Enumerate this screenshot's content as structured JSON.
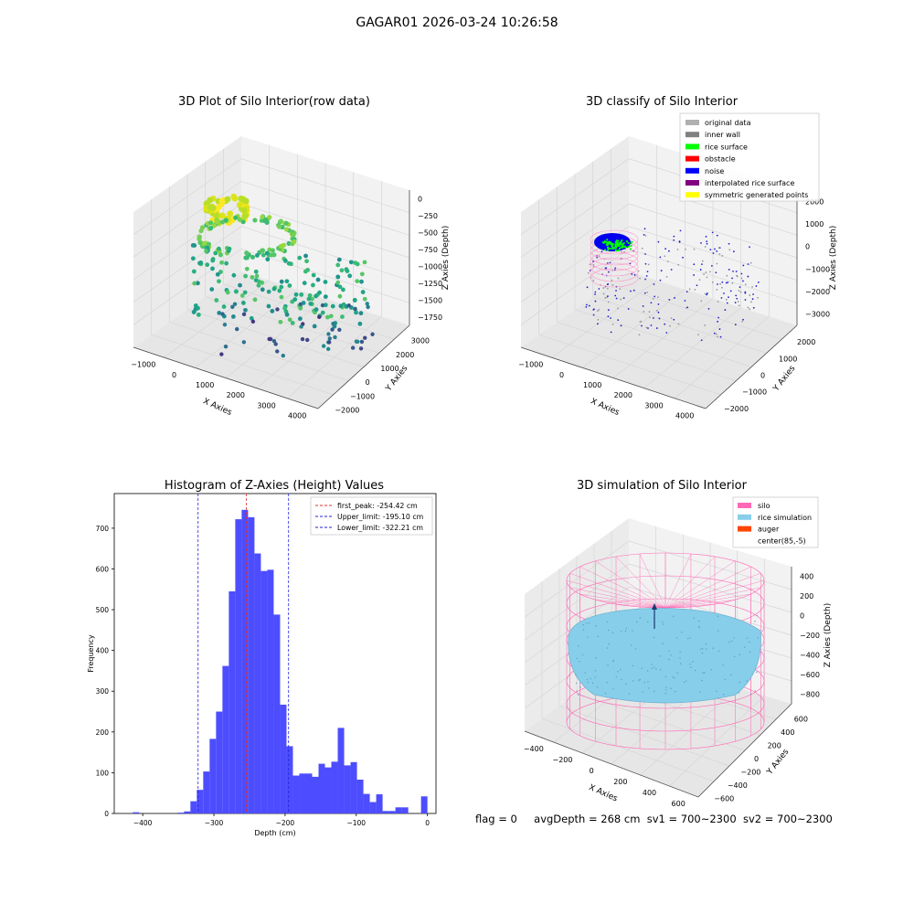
{
  "figure": {
    "title": "GAGAR01 2026-03-24 10:26:58",
    "status_line": {
      "flag": "flag = 0",
      "avg_depth": "avgDepth = 268 cm",
      "sv1": "sv1 = 700~2300",
      "sv2": "sv2 = 700~2300"
    }
  },
  "colors": {
    "histogram_bar": "#4d4dff",
    "first_peak_line": "#e03030",
    "limit_lines": "#2020e0",
    "pane": "#f2f2f2",
    "grid": "#d6d6d6",
    "silo_wire": "#ff69b4",
    "rice_surface": "#87ceeb"
  },
  "chart_data": [
    {
      "type": "scatter",
      "subtype": "3d",
      "title": "3D Plot of Silo Interior(row data)",
      "xlabel": "X Axies",
      "ylabel": "Y Axies",
      "zlabel": "Z Axies (Depth)",
      "xticks": [
        "−1000",
        "0",
        "1000",
        "2000",
        "3000",
        "4000"
      ],
      "yticks": [
        "−2000",
        "−1000",
        "0",
        "1000",
        "2000",
        "3000"
      ],
      "zticks": [
        "0",
        "−250",
        "−500",
        "−750",
        "−1000",
        "−1250",
        "−1500",
        "−1750"
      ],
      "colormap": "viridis (by depth)"
    },
    {
      "type": "scatter",
      "subtype": "3d",
      "title": "3D classify of Silo Interior",
      "xlabel": "X Axies",
      "ylabel": "Y Axies",
      "zlabel": "Z Axies (Depth)",
      "xticks": [
        "−1000",
        "0",
        "1000",
        "2000",
        "3000",
        "4000"
      ],
      "yticks": [
        "−2000",
        "−1000",
        "0",
        "1000",
        "2000"
      ],
      "zticks": [
        "2000",
        "1000",
        "0",
        "−1000",
        "−2000",
        "−3000"
      ],
      "legend_position": "top-right",
      "legend": [
        {
          "label": "original data",
          "color": "#b0b0b0"
        },
        {
          "label": "inner wall",
          "color": "#808080"
        },
        {
          "label": "rice surface",
          "color": "#00ff00"
        },
        {
          "label": "obstacle",
          "color": "#ff0000"
        },
        {
          "label": "noise",
          "color": "#0000ff"
        },
        {
          "label": "interpolated rice surface",
          "color": "#800080"
        },
        {
          "label": "symmetric generated points",
          "color": "#ffff00"
        }
      ]
    },
    {
      "type": "bar",
      "subtype": "histogram",
      "title": "Histogram of Z-Axies (Height) Values",
      "xlabel": "Depth (cm)",
      "ylabel": "Frequency",
      "xlim": [
        -440,
        12
      ],
      "ylim": [
        0,
        785
      ],
      "xticks": [
        {
          "value": -400,
          "label": "−400"
        },
        {
          "value": -300,
          "label": "−300"
        },
        {
          "value": -200,
          "label": "−200"
        },
        {
          "value": -100,
          "label": "−100"
        },
        {
          "value": 0,
          "label": "0"
        }
      ],
      "yticks": [
        {
          "value": 0,
          "label": "0"
        },
        {
          "value": 100,
          "label": "100"
        },
        {
          "value": 200,
          "label": "200"
        },
        {
          "value": 300,
          "label": "300"
        },
        {
          "value": 400,
          "label": "400"
        },
        {
          "value": 500,
          "label": "500"
        },
        {
          "value": 600,
          "label": "600"
        },
        {
          "value": 700,
          "label": "700"
        }
      ],
      "bins": [
        {
          "x0": -414,
          "x1": -405,
          "value": 3
        },
        {
          "x0": -351,
          "x1": -342,
          "value": 2
        },
        {
          "x0": -342,
          "x1": -333,
          "value": 5
        },
        {
          "x0": -333,
          "x1": -324,
          "value": 30
        },
        {
          "x0": -324,
          "x1": -315,
          "value": 58
        },
        {
          "x0": -315,
          "x1": -306,
          "value": 103
        },
        {
          "x0": -306,
          "x1": -297,
          "value": 183
        },
        {
          "x0": -297,
          "x1": -288,
          "value": 250
        },
        {
          "x0": -288,
          "x1": -279,
          "value": 362
        },
        {
          "x0": -279,
          "x1": -270,
          "value": 545
        },
        {
          "x0": -270,
          "x1": -261,
          "value": 722
        },
        {
          "x0": -261,
          "x1": -252,
          "value": 745
        },
        {
          "x0": -252,
          "x1": -243,
          "value": 727
        },
        {
          "x0": -243,
          "x1": -234,
          "value": 638
        },
        {
          "x0": -234,
          "x1": -225,
          "value": 595
        },
        {
          "x0": -225,
          "x1": -216,
          "value": 598
        },
        {
          "x0": -216,
          "x1": -207,
          "value": 488
        },
        {
          "x0": -207,
          "x1": -198,
          "value": 267
        },
        {
          "x0": -198,
          "x1": -189,
          "value": 165
        },
        {
          "x0": -189,
          "x1": -180,
          "value": 93
        },
        {
          "x0": -180,
          "x1": -171,
          "value": 98
        },
        {
          "x0": -171,
          "x1": -162,
          "value": 98
        },
        {
          "x0": -162,
          "x1": -153,
          "value": 90
        },
        {
          "x0": -153,
          "x1": -144,
          "value": 122
        },
        {
          "x0": -144,
          "x1": -135,
          "value": 113
        },
        {
          "x0": -135,
          "x1": -126,
          "value": 127
        },
        {
          "x0": -126,
          "x1": -117,
          "value": 210
        },
        {
          "x0": -117,
          "x1": -108,
          "value": 118
        },
        {
          "x0": -108,
          "x1": -99,
          "value": 126
        },
        {
          "x0": -99,
          "x1": -90,
          "value": 83
        },
        {
          "x0": -90,
          "x1": -81,
          "value": 48
        },
        {
          "x0": -81,
          "x1": -72,
          "value": 28
        },
        {
          "x0": -72,
          "x1": -63,
          "value": 47
        },
        {
          "x0": -63,
          "x1": -54,
          "value": 6
        },
        {
          "x0": -54,
          "x1": -45,
          "value": 6
        },
        {
          "x0": -45,
          "x1": -36,
          "value": 15
        },
        {
          "x0": -36,
          "x1": -27,
          "value": 15
        },
        {
          "x0": -9,
          "x1": 0,
          "value": 42
        }
      ],
      "vlines": [
        {
          "x": -254.42,
          "label": "first_peak: -254.42 cm",
          "style": "dashed",
          "color": "#e03030"
        },
        {
          "x": -195.1,
          "label": "Upper_limit: -195.10 cm",
          "style": "dashed",
          "color": "#2020e0"
        },
        {
          "x": -322.21,
          "label": "Lower_limit: -322.21 cm",
          "style": "dashed",
          "color": "#2020e0"
        }
      ],
      "legend_position": "top-right"
    },
    {
      "type": "scatter",
      "subtype": "3d-surface",
      "title": "3D simulation of Silo Interior",
      "xlabel": "X Axies",
      "ylabel": "Y Axies",
      "zlabel": "Z Axies (Depth)",
      "xticks": [
        "−400",
        "−200",
        "0",
        "200",
        "400",
        "600"
      ],
      "yticks": [
        "−600",
        "−400",
        "−200",
        "0",
        "200",
        "400",
        "600"
      ],
      "zticks": [
        "400",
        "200",
        "0",
        "−200",
        "−400",
        "−600",
        "−800"
      ],
      "legend_position": "top-right",
      "legend": [
        {
          "label": "silo",
          "color": "#ff69b4"
        },
        {
          "label": "rice simulation",
          "color": "#87ceeb"
        },
        {
          "label": "auger",
          "color": "#ff4500"
        },
        {
          "label": "center(85,-5)",
          "color": ""
        }
      ]
    }
  ]
}
